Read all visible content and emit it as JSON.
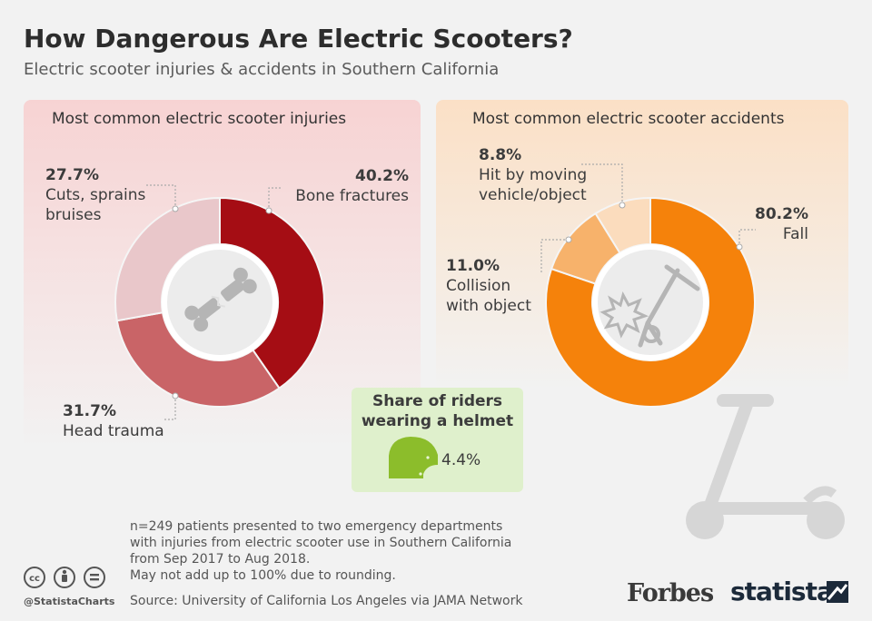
{
  "header": {
    "title": "How Dangerous Are Electric Scooters?",
    "subtitle": "Electric scooter injuries & accidents in Southern California"
  },
  "chart_data": [
    {
      "type": "pie",
      "title": "Most common electric scooter injuries",
      "slices": [
        {
          "label": "Bone fractures",
          "value": 40.2,
          "value_label": "40.2%",
          "color": "#a50d14"
        },
        {
          "label": "Head trauma",
          "value": 31.7,
          "value_label": "31.7%",
          "color": "#c96467"
        },
        {
          "label_lines": [
            "Cuts, sprains",
            "bruises"
          ],
          "value": 27.7,
          "value_label": "27.7%",
          "color": "#e9c7ca"
        }
      ]
    },
    {
      "type": "pie",
      "title": "Most common electric scooter accidents",
      "slices": [
        {
          "label": "Fall",
          "value": 80.2,
          "value_label": "80.2%",
          "color": "#f5820b"
        },
        {
          "label_lines": [
            "Collision",
            "with object"
          ],
          "value": 11.0,
          "value_label": "11.0%",
          "color": "#f7b26b"
        },
        {
          "label_lines": [
            "Hit by moving",
            "vehicle/object"
          ],
          "value": 8.8,
          "value_label": "8.8%",
          "color": "#fbdcbd"
        }
      ]
    }
  ],
  "helmet": {
    "title_lines": [
      "Share of riders",
      "wearing a helmet"
    ],
    "value": 4.4,
    "value_label": "4.4%",
    "color": "#8cbd2b"
  },
  "footer": {
    "note_lines": [
      "n=249 patients presented to two emergency departments",
      "with injuries from electric scooter use in Southern California",
      "from Sep 2017 to Aug 2018.",
      "May not add up to 100% due to rounding."
    ],
    "source": "Source: University of California Los Angeles via JAMA Network",
    "handle": "@StatistaCharts",
    "license_icons": [
      "cc-icon",
      "by-icon",
      "nd-icon"
    ],
    "logo_forbes": "Forbes",
    "logo_statista": "statista"
  }
}
